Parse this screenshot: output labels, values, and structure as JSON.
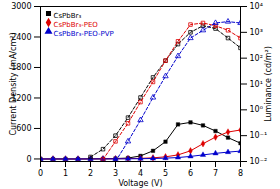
{
  "chart_data": {
    "type": "line",
    "xlabel": "Voltage (V)",
    "ylabel": "Current Density (mA/cm²)",
    "y2label": "Luminance (cd/m²)",
    "xlim": [
      0,
      8
    ],
    "xticks": [
      0,
      1,
      2,
      3,
      4,
      5,
      6,
      7,
      8
    ],
    "ylim": [
      -50,
      3000
    ],
    "yticks": [
      0,
      600,
      1200,
      1800,
      2400,
      3000
    ],
    "y2lim": [
      0.01,
      10000
    ],
    "y2ticks": [
      {
        "value": 0.01,
        "label": "10⁻²"
      },
      {
        "value": 0.1,
        "label": "10⁻¹"
      },
      {
        "value": 1,
        "label": "10⁰"
      },
      {
        "value": 10,
        "label": "10¹"
      },
      {
        "value": 100,
        "label": "10²"
      },
      {
        "value": 1000,
        "label": "10³"
      },
      {
        "value": 10000,
        "label": "10⁴"
      }
    ],
    "log": "y2",
    "grid": false,
    "legend": "upper left",
    "series": [
      {
        "name": "CsPbBr₃",
        "color": "#000000",
        "marker": "square",
        "line_style": "solid",
        "x": [
          0,
          0.5,
          1.0,
          1.5,
          2.0,
          2.5,
          3.0,
          3.5,
          4.0,
          4.5,
          5.0,
          5.5,
          6.0,
          6.5,
          7.0,
          7.5,
          8.0
        ],
        "values": [
          0,
          0,
          0,
          0,
          2,
          4,
          8,
          18,
          60,
          160,
          340,
          680,
          720,
          660,
          550,
          420,
          310
        ]
      },
      {
        "name": "CsPbBr₃-PEO",
        "color": "#dd0000",
        "marker": "pentagon",
        "line_style": "solid",
        "x": [
          0,
          0.5,
          1.0,
          1.5,
          2.0,
          2.5,
          3.0,
          3.5,
          4.0,
          4.5,
          5.0,
          5.5,
          6.0,
          6.5,
          7.0,
          7.5,
          8.0
        ],
        "values": [
          0,
          0,
          0,
          0,
          1,
          2,
          4,
          7,
          12,
          22,
          42,
          80,
          160,
          300,
          430,
          530,
          570
        ]
      },
      {
        "name": "CsPbBr₃-PEO-PVP",
        "color": "#0000cc",
        "marker": "triangle",
        "line_style": "solid",
        "x": [
          0,
          0.5,
          1.0,
          1.5,
          2.0,
          2.5,
          3.0,
          3.5,
          4.0,
          4.5,
          5.0,
          5.5,
          6.0,
          6.5,
          7.0,
          7.5,
          8.0
        ],
        "values": [
          0,
          0,
          0,
          0,
          0.5,
          1,
          2,
          3,
          5,
          9,
          16,
          28,
          50,
          80,
          110,
          135,
          155
        ]
      },
      {
        "name": "CsPbBr₃",
        "color": "#000000",
        "marker": "open square",
        "line_style": "dashed",
        "axis": "y2",
        "x": [
          2.0,
          2.5,
          3.0,
          3.5,
          4.0,
          4.5,
          5.0,
          5.5,
          6.0,
          6.5,
          7.0,
          7.5,
          8.0
        ],
        "values": [
          0.015,
          0.03,
          0.1,
          0.5,
          3.0,
          18,
          80,
          350,
          1000,
          1800,
          1400,
          600,
          250
        ]
      },
      {
        "name": "CsPbBr₃-PEO",
        "color": "#dd0000",
        "marker": "open square",
        "line_style": "dashed",
        "axis": "y2",
        "x": [
          2.5,
          3.0,
          3.5,
          4.0,
          4.5,
          5.0,
          5.5,
          6.0,
          6.5,
          7.0,
          7.5,
          8.0
        ],
        "values": [
          0.012,
          0.06,
          0.3,
          2.0,
          12,
          80,
          450,
          2000,
          2300,
          1800,
          1200,
          600
        ]
      },
      {
        "name": "CsPbBr₃-PEO-PVP",
        "color": "#0000cc",
        "marker": "open triangle",
        "line_style": "dashed",
        "axis": "y2",
        "x": [
          3.0,
          3.5,
          4.0,
          4.5,
          5.0,
          5.5,
          6.0,
          6.5,
          7.0,
          7.5,
          8.0
        ],
        "values": [
          0.01,
          0.06,
          0.4,
          3,
          20,
          120,
          600,
          1200,
          2300,
          2600,
          2300
        ]
      }
    ]
  }
}
